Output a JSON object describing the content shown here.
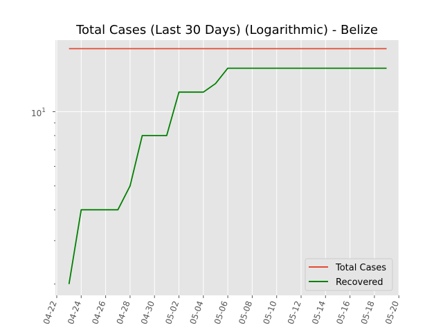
{
  "chart_data": {
    "type": "line",
    "title": "Total Cases (Last 30 Days) (Logarithmic) - Belize",
    "xlabel": "",
    "ylabel": "",
    "y_scale": "log",
    "ylim": [
      1.8,
      19.5
    ],
    "grid": true,
    "legend_position": "lower-right",
    "x": [
      "2020-04-23",
      "2020-04-24",
      "2020-04-25",
      "2020-04-26",
      "2020-04-27",
      "2020-04-28",
      "2020-04-29",
      "2020-04-30",
      "2020-05-01",
      "2020-05-02",
      "2020-05-03",
      "2020-05-04",
      "2020-05-05",
      "2020-05-06",
      "2020-05-07",
      "2020-05-08",
      "2020-05-09",
      "2020-05-10",
      "2020-05-11",
      "2020-05-12",
      "2020-05-13",
      "2020-05-14",
      "2020-05-15",
      "2020-05-16",
      "2020-05-17",
      "2020-05-18",
      "2020-05-19"
    ],
    "x_tick_labels": [
      "04-22",
      "04-24",
      "04-26",
      "04-28",
      "04-30",
      "05-02",
      "05-04",
      "05-06",
      "05-08",
      "05-10",
      "05-12",
      "05-14",
      "05-16",
      "05-18",
      "05-20"
    ],
    "y_tick_label": "10",
    "y_tick_exponent": "1",
    "series": [
      {
        "name": "Total Cases",
        "color": "#e24a33",
        "values": [
          18,
          18,
          18,
          18,
          18,
          18,
          18,
          18,
          18,
          18,
          18,
          18,
          18,
          18,
          18,
          18,
          18,
          18,
          18,
          18,
          18,
          18,
          18,
          18,
          18,
          18,
          18
        ]
      },
      {
        "name": "Recovered",
        "color": "#008000",
        "values": [
          2,
          4,
          4,
          4,
          4,
          5,
          8,
          8,
          8,
          12,
          12,
          12,
          13,
          15,
          15,
          15,
          15,
          15,
          15,
          15,
          15,
          15,
          15,
          15,
          15,
          15,
          15
        ]
      }
    ]
  }
}
